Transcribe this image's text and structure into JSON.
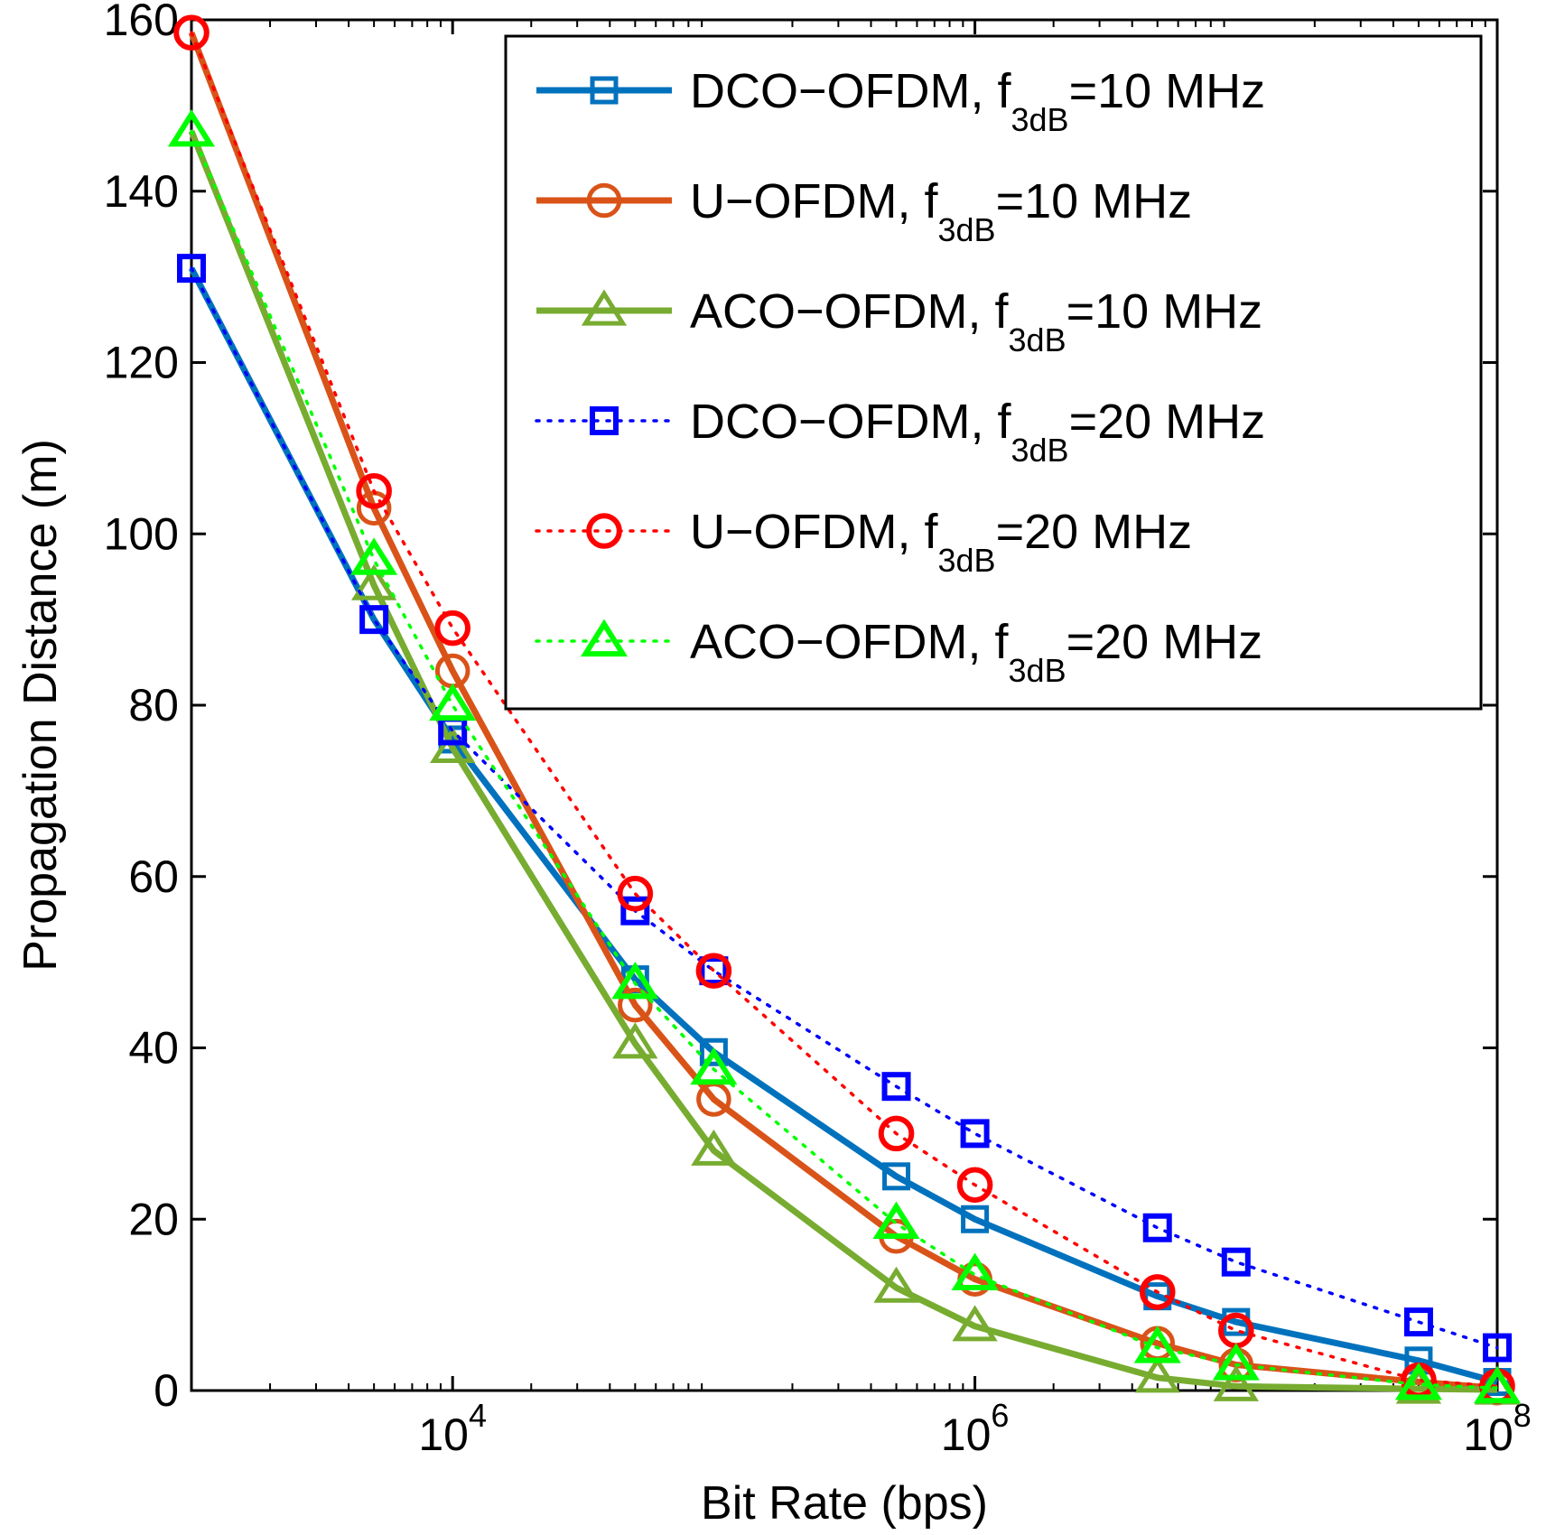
{
  "chart_data": {
    "type": "line",
    "title": "",
    "xlabel": "Bit Rate (bps)",
    "ylabel": "Propagation Distance (m)",
    "xscale": "log",
    "xlim": [
      1000,
      100000000
    ],
    "ylim": [
      0,
      160
    ],
    "x_ticks": [
      {
        "value": 10000,
        "base": "10",
        "exp": "4"
      },
      {
        "value": 1000000,
        "base": "10",
        "exp": "6"
      },
      {
        "value": 100000000,
        "base": "10",
        "exp": "8"
      }
    ],
    "y_ticks": [
      {
        "value": 0,
        "label": "0"
      },
      {
        "value": 20,
        "label": "20"
      },
      {
        "value": 40,
        "label": "40"
      },
      {
        "value": 60,
        "label": "60"
      },
      {
        "value": 80,
        "label": "80"
      },
      {
        "value": 100,
        "label": "100"
      },
      {
        "value": 120,
        "label": "120"
      },
      {
        "value": 140,
        "label": "140"
      },
      {
        "value": 160,
        "label": "160"
      }
    ],
    "legend_position": "top-right",
    "series": [
      {
        "name": "DCO-OFDM, f3dB=10 MHz",
        "label_main": "DCO−OFDM, f",
        "label_sub": "3dB",
        "label_tail": "=10 MHz",
        "color": "#0072BD",
        "style": "solid",
        "marker": "square",
        "x": [
          1000,
          5000,
          10000,
          50000,
          100000,
          500000,
          1000000,
          5000000,
          10000000,
          50000000,
          100000000
        ],
        "y": [
          131,
          90,
          76,
          48,
          39.5,
          25,
          20,
          11,
          8,
          3.5,
          1
        ]
      },
      {
        "name": "U-OFDM, f3dB=10 MHz",
        "label_main": "U−OFDM, f",
        "label_sub": "3dB",
        "label_tail": "=10 MHz",
        "color": "#D95319",
        "style": "solid",
        "marker": "circle",
        "x": [
          1000,
          5000,
          10000,
          50000,
          100000,
          500000,
          1000000,
          5000000,
          10000000,
          50000000,
          100000000
        ],
        "y": [
          158.5,
          103,
          84,
          45,
          34,
          18,
          13,
          5.5,
          3,
          1,
          0.3
        ]
      },
      {
        "name": "ACO-OFDM, f3dB=10 MHz",
        "label_main": "ACO−OFDM, f",
        "label_sub": "3dB",
        "label_tail": "=10 MHz",
        "color": "#77AC30",
        "style": "solid",
        "marker": "triangle",
        "x": [
          1000,
          5000,
          10000,
          50000,
          100000,
          500000,
          1000000,
          5000000,
          10000000,
          50000000,
          100000000
        ],
        "y": [
          147,
          94,
          75,
          40.5,
          28,
          12,
          7.5,
          1.5,
          0.5,
          0.2,
          0.1
        ]
      },
      {
        "name": "DCO-OFDM, f3dB=20 MHz",
        "label_main": "DCO−OFDM, f",
        "label_sub": "3dB",
        "label_tail": "=20 MHz",
        "color": "#0000FF",
        "style": "dotted",
        "marker": "square",
        "x": [
          1000,
          5000,
          10000,
          50000,
          100000,
          500000,
          1000000,
          5000000,
          10000000,
          50000000,
          100000000
        ],
        "y": [
          131,
          90,
          77,
          56,
          49,
          35.5,
          30,
          19,
          15,
          8,
          5
        ]
      },
      {
        "name": "U-OFDM, f3dB=20 MHz",
        "label_main": "U−OFDM, f",
        "label_sub": "3dB",
        "label_tail": "=20 MHz",
        "color": "#FF0000",
        "style": "dotted",
        "marker": "circle",
        "x": [
          1000,
          5000,
          10000,
          50000,
          100000,
          500000,
          1000000,
          5000000,
          10000000,
          50000000,
          100000000
        ],
        "y": [
          158.5,
          105,
          89,
          58,
          49,
          30,
          24,
          11.5,
          7,
          1.2,
          0.5
        ]
      },
      {
        "name": "ACO-OFDM, f3dB=20 MHz",
        "label_main": "ACO−OFDM, f",
        "label_sub": "3dB",
        "label_tail": "=20 MHz",
        "color": "#00FF00",
        "style": "dotted",
        "marker": "triangle",
        "x": [
          1000,
          5000,
          10000,
          50000,
          100000,
          500000,
          1000000,
          5000000,
          10000000,
          50000000,
          100000000
        ],
        "y": [
          147,
          97,
          80,
          47.5,
          37.5,
          19.5,
          13.5,
          5,
          3,
          0.7,
          0.3
        ]
      }
    ]
  }
}
